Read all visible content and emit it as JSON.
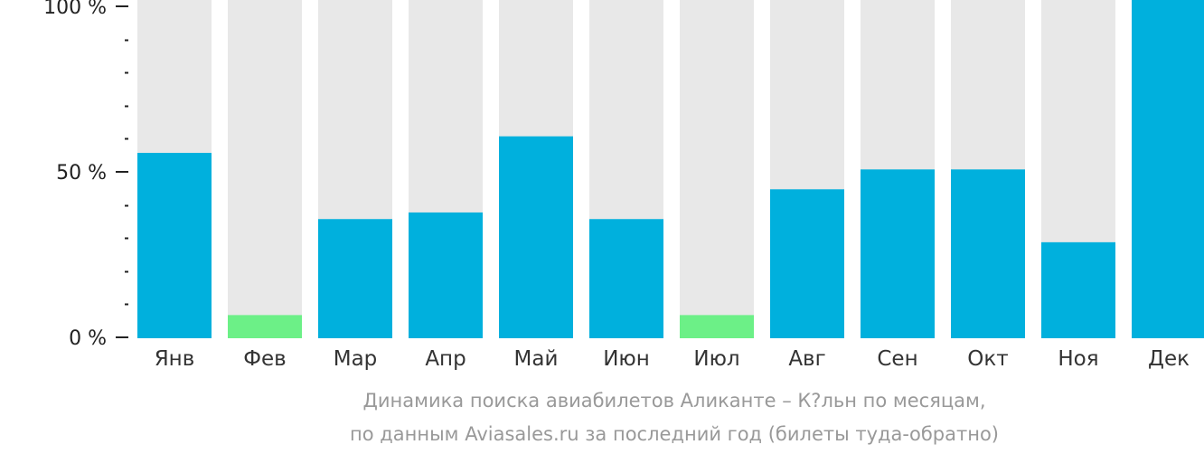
{
  "chart_data": {
    "type": "bar",
    "categories": [
      "Янв",
      "Фев",
      "Мар",
      "Апр",
      "Май",
      "Июн",
      "Июл",
      "Авг",
      "Сен",
      "Окт",
      "Ноя",
      "Дек"
    ],
    "values": [
      56,
      7,
      36,
      38,
      61,
      36,
      7,
      45,
      51,
      51,
      29,
      100
    ],
    "lowest_months": [
      "Фев",
      "Июл"
    ],
    "ylim": [
      0,
      100
    ],
    "y_ticks": [
      {
        "value": 0,
        "label": "0 %"
      },
      {
        "value": 50,
        "label": "50 %"
      },
      {
        "value": 100,
        "label": "100 %"
      }
    ],
    "minor_tick_step": 10,
    "grid": false,
    "colors": {
      "bar": "#00B0DD",
      "bar_lowest": "#6CF087",
      "track": "#E8E8E8",
      "axis": "#222222"
    },
    "caption": [
      "Динамика поиска авиабилетов Аликанте – К?льн по месяцам,",
      "по данным Aviasales.ru за последний год (билеты туда-обратно)"
    ]
  }
}
